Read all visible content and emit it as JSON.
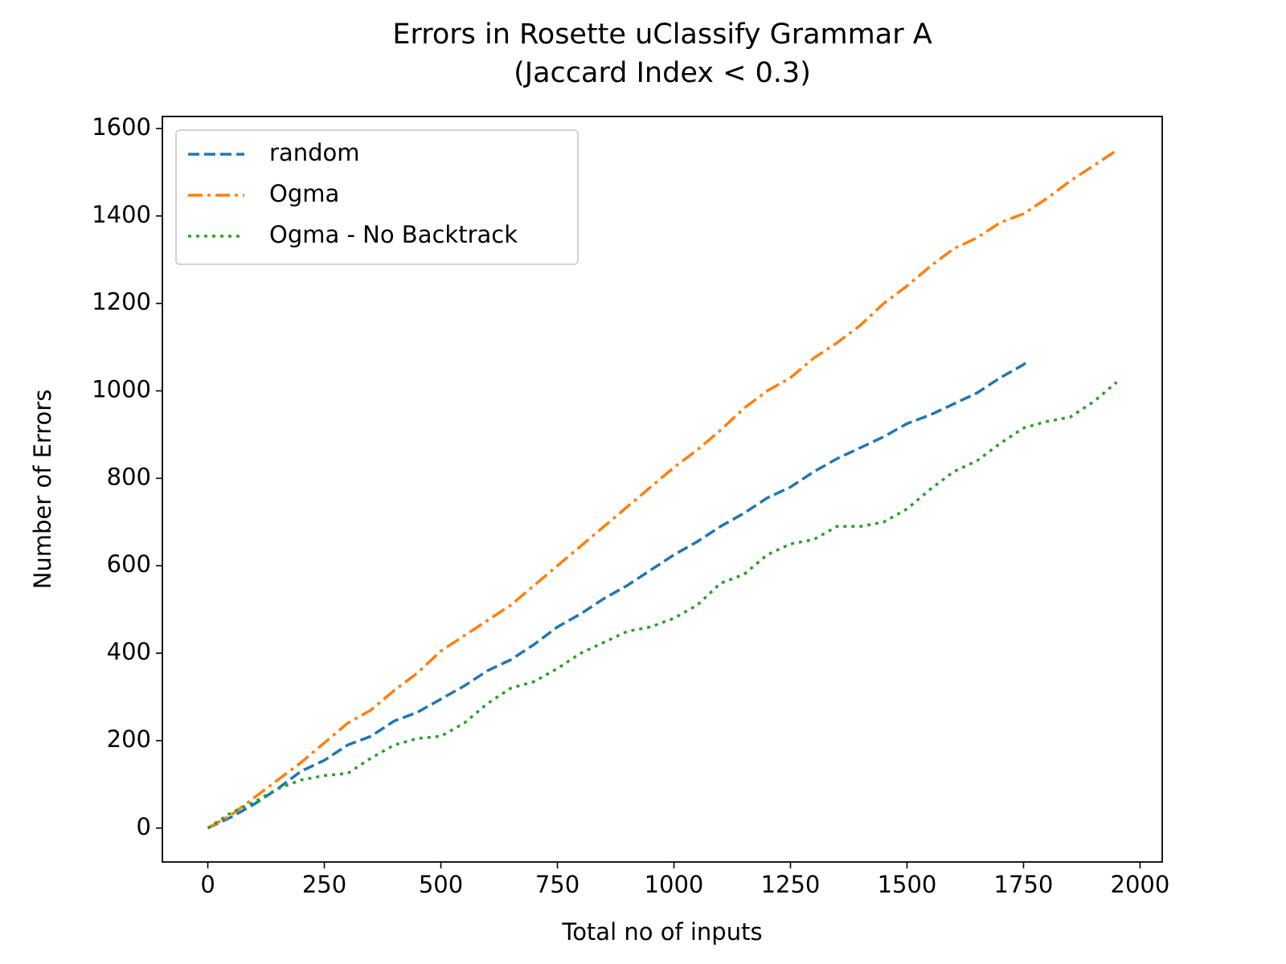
{
  "chart_data": {
    "type": "line",
    "title": "Errors in Rosette uClassify Grammar A",
    "subtitle": "(Jaccard Index < 0.3)",
    "x_label": "Total no of inputs",
    "y_label": "Number of Errors",
    "xlim": [
      -97.5,
      2047.5
    ],
    "xticks": [
      0,
      250,
      500,
      750,
      1000,
      1250,
      1500,
      1750,
      2000
    ],
    "ylim": [
      -77.5,
      1627.5
    ],
    "yticks": [
      0,
      200,
      400,
      600,
      800,
      1000,
      1200,
      1400,
      1600
    ],
    "legend": "upper left",
    "series": [
      {
        "name": "random",
        "color": "#1f77b4",
        "style": "dashed",
        "x": [
          0,
          50,
          100,
          150,
          200,
          250,
          300,
          350,
          400,
          450,
          500,
          550,
          600,
          650,
          700,
          750,
          800,
          850,
          900,
          950,
          1000,
          1050,
          1100,
          1150,
          1200,
          1250,
          1300,
          1350,
          1400,
          1450,
          1500,
          1550,
          1600,
          1650,
          1700,
          1750,
          1760
        ],
        "values": [
          0,
          25,
          55,
          90,
          130,
          155,
          190,
          210,
          245,
          265,
          295,
          325,
          360,
          385,
          420,
          460,
          490,
          525,
          555,
          590,
          625,
          655,
          690,
          720,
          755,
          780,
          815,
          845,
          870,
          895,
          925,
          945,
          970,
          995,
          1030,
          1060,
          1070
        ]
      },
      {
        "name": "Ogma",
        "color": "#ff7f0e",
        "style": "dashdot",
        "x": [
          0,
          50,
          100,
          150,
          200,
          250,
          300,
          350,
          400,
          450,
          500,
          550,
          600,
          650,
          700,
          750,
          800,
          850,
          900,
          950,
          1000,
          1050,
          1100,
          1150,
          1200,
          1250,
          1300,
          1350,
          1400,
          1450,
          1500,
          1550,
          1600,
          1650,
          1700,
          1750,
          1800,
          1850,
          1900,
          1950
        ],
        "values": [
          0,
          30,
          70,
          110,
          150,
          195,
          240,
          270,
          315,
          355,
          405,
          440,
          475,
          510,
          555,
          600,
          645,
          690,
          735,
          780,
          825,
          865,
          910,
          960,
          1000,
          1030,
          1075,
          1110,
          1150,
          1200,
          1240,
          1285,
          1325,
          1350,
          1385,
          1405,
          1440,
          1480,
          1515,
          1550
        ]
      },
      {
        "name": "Ogma - No Backtrack",
        "color": "#2ca02c",
        "style": "dotted",
        "x": [
          0,
          50,
          100,
          150,
          200,
          250,
          300,
          350,
          400,
          450,
          500,
          550,
          600,
          650,
          700,
          750,
          800,
          850,
          900,
          950,
          1000,
          1050,
          1100,
          1150,
          1200,
          1250,
          1300,
          1350,
          1400,
          1450,
          1500,
          1550,
          1600,
          1650,
          1700,
          1750,
          1800,
          1850,
          1900,
          1950
        ],
        "values": [
          0,
          35,
          60,
          90,
          110,
          120,
          125,
          160,
          190,
          205,
          210,
          240,
          285,
          320,
          335,
          365,
          400,
          425,
          450,
          460,
          480,
          510,
          560,
          580,
          625,
          650,
          660,
          690,
          690,
          700,
          730,
          775,
          815,
          840,
          880,
          915,
          930,
          940,
          975,
          1020
        ]
      }
    ]
  }
}
